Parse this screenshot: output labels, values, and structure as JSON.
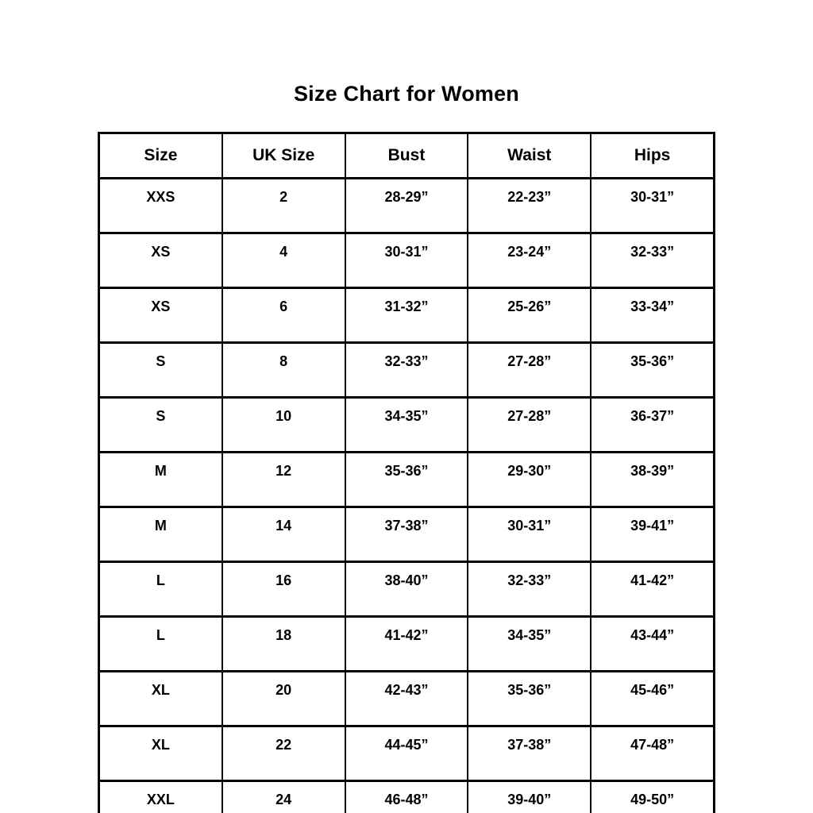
{
  "title": "Size Chart for Women",
  "colors": {
    "background": "#ffffff",
    "text": "#000000",
    "border": "#000000"
  },
  "chart_data": {
    "type": "table",
    "title": "Size Chart for Women",
    "columns": [
      "Size",
      "UK Size",
      "Bust",
      "Waist",
      "Hips"
    ],
    "rows": [
      [
        "XXS",
        "2",
        "28-29”",
        "22-23”",
        "30-31”"
      ],
      [
        "XS",
        "4",
        "30-31”",
        "23-24”",
        "32-33”"
      ],
      [
        "XS",
        "6",
        "31-32”",
        "25-26”",
        "33-34”"
      ],
      [
        "S",
        "8",
        "32-33”",
        "27-28”",
        "35-36”"
      ],
      [
        "S",
        "10",
        "34-35”",
        "27-28”",
        "36-37”"
      ],
      [
        "M",
        "12",
        "35-36”",
        "29-30”",
        "38-39”"
      ],
      [
        "M",
        "14",
        "37-38”",
        "30-31”",
        "39-41”"
      ],
      [
        "L",
        "16",
        "38-40”",
        "32-33”",
        "41-42”"
      ],
      [
        "L",
        "18",
        "41-42”",
        "34-35”",
        "43-44”"
      ],
      [
        "XL",
        "20",
        "42-43”",
        "35-36”",
        "45-46”"
      ],
      [
        "XL",
        "22",
        "44-45”",
        "37-38”",
        "47-48”"
      ],
      [
        "XXL",
        "24",
        "46-48”",
        "39-40”",
        "49-50”"
      ]
    ]
  }
}
